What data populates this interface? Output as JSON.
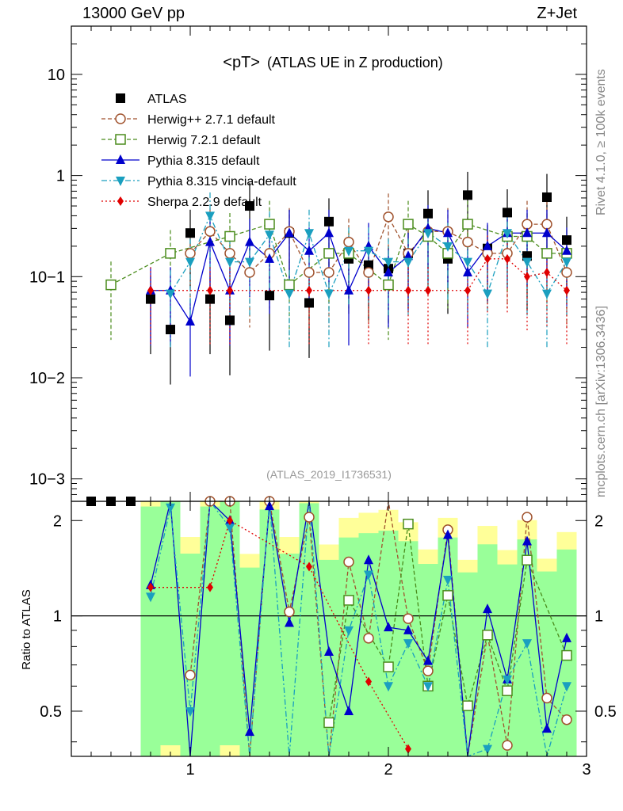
{
  "header": {
    "left": "13000 GeV pp",
    "right": "Z+Jet"
  },
  "side_labels": {
    "rivet": "Rivet 4.1.0, ≥ 100k events",
    "mcplots": "mcplots.cern.ch [arXiv:1306.3436]"
  },
  "chart_data": {
    "type": "scatter",
    "title_main": "<pT>",
    "title_sub": "(ATLAS UE in Z production)",
    "analysis_id": "(ATLAS_2019_I1736531)",
    "xlim": [
      0.4,
      3.0
    ],
    "ylim_main": [
      0.0006,
      30
    ],
    "yscale_main": "log",
    "ylim_ratio": [
      0.36,
      2.3
    ],
    "ylabel_ratio": "Ratio to ATLAS",
    "x_ticks": [
      "1",
      "2",
      "3"
    ],
    "y_ticks_main": [
      "10",
      "1",
      "10−1",
      "10−2",
      "10−3"
    ],
    "y_ticks_ratio": [
      "2",
      "1",
      "0.5"
    ],
    "legend_position": "top-left",
    "x": [
      0.5,
      0.6,
      0.7,
      0.8,
      0.9,
      1.0,
      1.1,
      1.2,
      1.3,
      1.4,
      1.5,
      1.6,
      1.7,
      1.8,
      1.9,
      2.0,
      2.1,
      2.2,
      2.3,
      2.4,
      2.5,
      2.6,
      2.7,
      2.8,
      2.9
    ],
    "series": [
      {
        "name": "ATLAS",
        "color": "#000000",
        "marker": "square-filled",
        "line": "none",
        "values": [
          0.0006,
          0.0006,
          0.0006,
          0.06,
          0.03,
          0.27,
          0.06,
          0.037,
          0.5,
          0.065,
          0.27,
          0.055,
          0.35,
          0.15,
          0.13,
          0.12,
          0.17,
          0.42,
          0.15,
          0.64,
          0.19,
          0.43,
          0.16,
          0.61,
          0.23
        ]
      },
      {
        "name": "Herwig++ 2.7.1 default",
        "color": "#a0522d",
        "marker": "circle-open",
        "line": "dashed",
        "values": [
          null,
          null,
          null,
          null,
          null,
          0.17,
          0.28,
          0.17,
          0.11,
          0.17,
          0.28,
          0.11,
          0.11,
          0.22,
          0.11,
          0.39,
          0.17,
          0.28,
          0.28,
          0.22,
          0.17,
          0.17,
          0.33,
          0.33,
          0.11
        ],
        "ratio": [
          null,
          null,
          null,
          null,
          null,
          0.65,
          2.3,
          2.3,
          0.22,
          2.3,
          1.03,
          2.05,
          0.32,
          1.48,
          0.85,
          3.2,
          0.98,
          0.67,
          1.87,
          0.35,
          0.87,
          0.39,
          2.05,
          0.55,
          0.47
        ]
      },
      {
        "name": "Herwig 7.2.1 default",
        "color": "#4a8c1c",
        "marker": "square-open",
        "line": "dashed",
        "values": [
          null,
          0.083,
          null,
          null,
          0.17,
          null,
          null,
          0.25,
          null,
          0.33,
          0.083,
          null,
          0.17,
          0.17,
          null,
          0.083,
          0.33,
          0.25,
          0.17,
          0.33,
          null,
          0.25,
          0.25,
          0.17,
          0.17
        ],
        "ratio": [
          null,
          null,
          null,
          null,
          null,
          null,
          null,
          null,
          null,
          null,
          null,
          null,
          0.46,
          1.12,
          null,
          0.69,
          1.95,
          0.6,
          1.16,
          0.52,
          0.87,
          0.58,
          1.5,
          null,
          0.75
        ]
      },
      {
        "name": "Pythia 8.315 default",
        "color": "#0000cc",
        "marker": "triangle-up",
        "line": "solid",
        "values": [
          null,
          null,
          null,
          0.073,
          0.073,
          0.036,
          0.22,
          0.073,
          0.22,
          0.15,
          0.27,
          0.18,
          0.27,
          0.073,
          0.2,
          0.11,
          0.16,
          0.3,
          0.27,
          0.11,
          0.2,
          0.27,
          0.27,
          0.27,
          0.18
        ],
        "ratio": [
          null,
          null,
          null,
          1.25,
          2.5,
          0.13,
          3.5,
          2.0,
          0.43,
          2.22,
          0.95,
          3.3,
          0.77,
          0.5,
          1.5,
          0.92,
          0.9,
          0.72,
          1.8,
          0.17,
          1.05,
          0.63,
          1.72,
          0.44,
          0.85
        ]
      },
      {
        "name": "Pythia 8.315 vincia-default",
        "color": "#1a9fbf",
        "marker": "triangle-down",
        "line": "dashdot",
        "values": [
          null,
          null,
          null,
          null,
          0.068,
          0.14,
          0.4,
          0.14,
          0.14,
          0.26,
          0.068,
          0.27,
          0.068,
          0.18,
          0.18,
          0.14,
          0.14,
          0.27,
          0.2,
          0.14,
          0.068,
          0.27,
          0.14,
          0.068,
          0.14
        ],
        "ratio": [
          null,
          null,
          null,
          1.15,
          2.2,
          0.5,
          6.0,
          1.9,
          0.28,
          2.5,
          0.25,
          4.0,
          0.2,
          0.9,
          1.35,
          0.6,
          0.82,
          0.6,
          1.3,
          0.2,
          0.38,
          0.63,
          0.82,
          0.15,
          0.6
        ]
      },
      {
        "name": "Sherpa 2.2.9 default",
        "color": "#e00000",
        "marker": "diamond",
        "line": "dotted",
        "values": [
          null,
          null,
          null,
          0.073,
          null,
          null,
          0.073,
          0.073,
          null,
          null,
          null,
          0.073,
          null,
          null,
          0.073,
          null,
          0.073,
          0.073,
          null,
          0.073,
          0.15,
          0.15,
          0.1,
          0.11,
          0.073
        ],
        "ratio": [
          null,
          null,
          null,
          1.23,
          null,
          null,
          1.23,
          2.0,
          null,
          null,
          null,
          1.43,
          null,
          null,
          0.62,
          null,
          0.38,
          null,
          null,
          null,
          null,
          null,
          null,
          null,
          null
        ]
      }
    ]
  }
}
